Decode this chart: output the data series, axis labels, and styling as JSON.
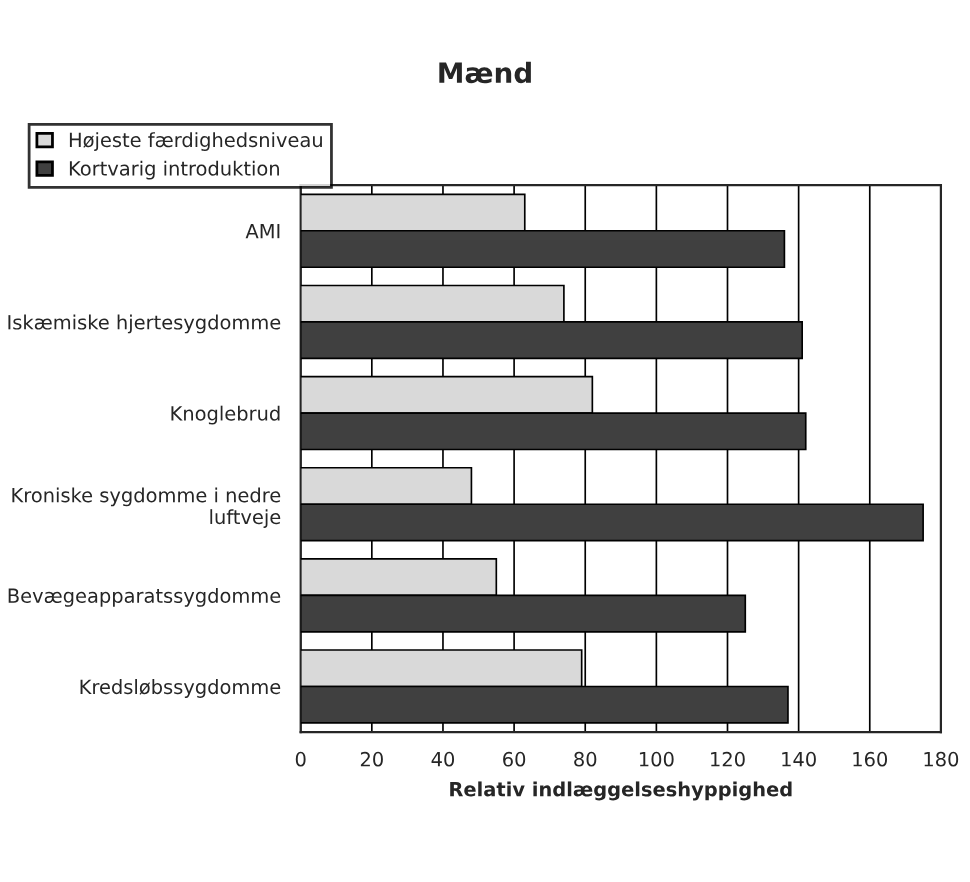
{
  "chart_data": {
    "type": "bar",
    "orientation": "horizontal",
    "title": "Mænd",
    "xlabel": "Relativ indlæggelseshyppighed",
    "categories": [
      "AMI",
      "Iskæmiske hjertesygdomme",
      "Knoglebrud",
      "Kroniske sygdomme i nedre\nluftveje",
      "Bevægeapparatssygdomme",
      "Kredsløbssygdomme"
    ],
    "series": [
      {
        "name": "Højeste færdighedsniveau",
        "color": "#d9d9d9",
        "values": [
          63,
          74,
          82,
          48,
          55,
          79
        ]
      },
      {
        "name": "Kortvarig introduktion",
        "color": "#404040",
        "values": [
          136,
          141,
          142,
          175,
          125,
          137
        ]
      }
    ],
    "xlim": [
      0,
      180
    ],
    "xticks": [
      0,
      20,
      40,
      60,
      80,
      100,
      120,
      140,
      160,
      180
    ],
    "grid": "x",
    "legend": "top left"
  }
}
